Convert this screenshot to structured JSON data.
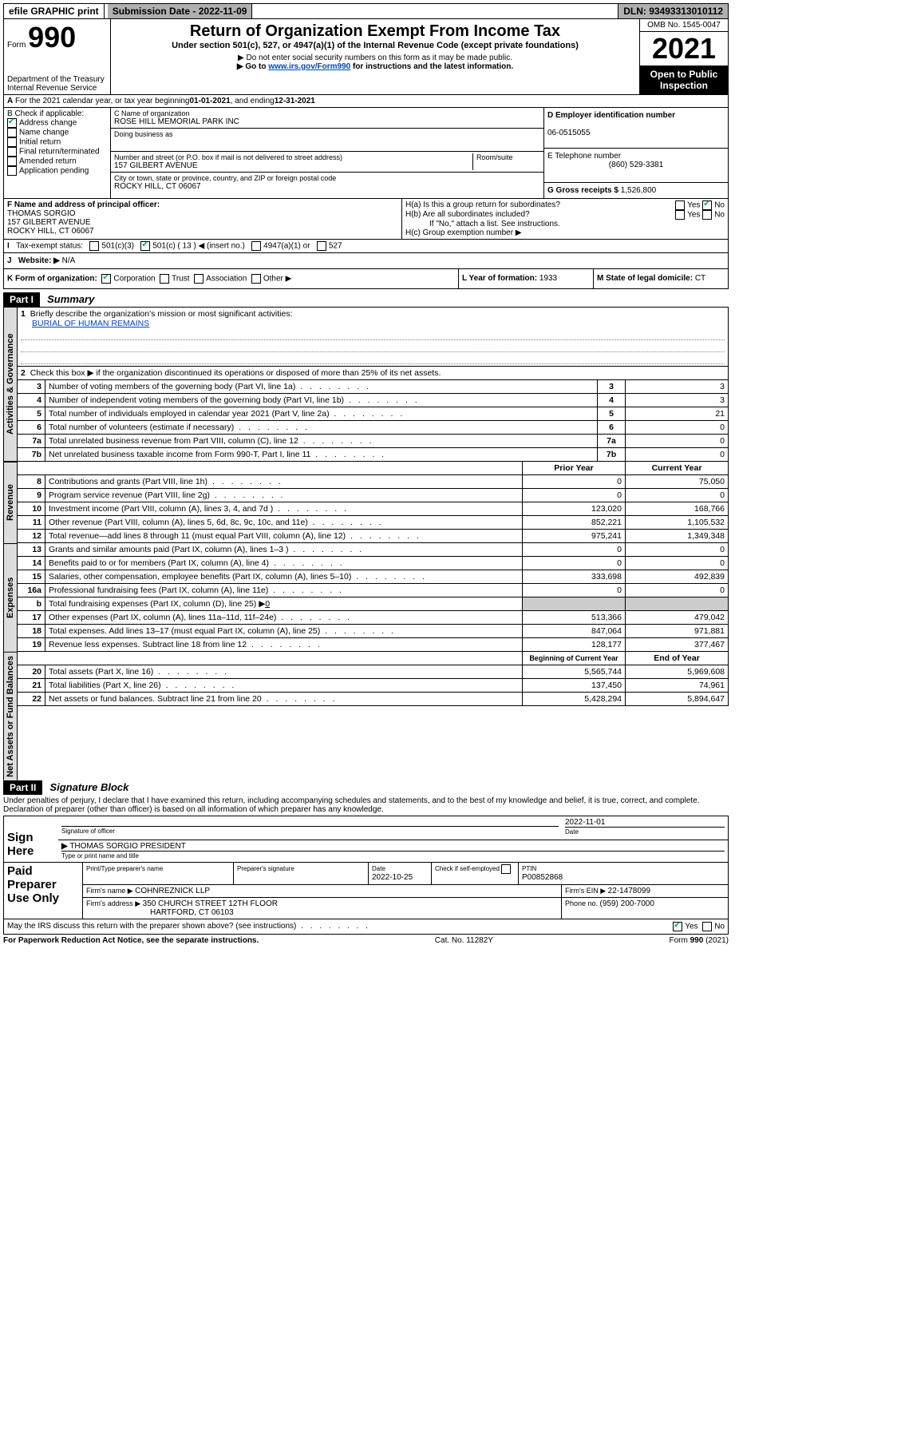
{
  "topbar": {
    "efile": "efile GRAPHIC print",
    "submission_label": "Submission Date - ",
    "submission_date": "2022-11-09",
    "dln_label": "DLN: ",
    "dln": "93493313010112"
  },
  "header": {
    "form_label": "Form",
    "form_num": "990",
    "dept": "Department of the Treasury",
    "irs": "Internal Revenue Service",
    "title": "Return of Organization Exempt From Income Tax",
    "subtitle": "Under section 501(c), 527, or 4947(a)(1) of the Internal Revenue Code (except private foundations)",
    "note1": "Do not enter social security numbers on this form as it may be made public.",
    "note2_pre": "Go to ",
    "note2_link": "www.irs.gov/Form990",
    "note2_post": " for instructions and the latest information.",
    "omb": "OMB No. 1545-0047",
    "year": "2021",
    "open": "Open to Public Inspection"
  },
  "lineA": {
    "pre": "For the 2021 calendar year, or tax year beginning ",
    "begin": "01-01-2021",
    "mid": " , and ending ",
    "end": "12-31-2021"
  },
  "boxB": {
    "title": "B Check if applicable:",
    "items": [
      {
        "label": "Address change",
        "checked": true
      },
      {
        "label": "Name change",
        "checked": false
      },
      {
        "label": "Initial return",
        "checked": false
      },
      {
        "label": "Final return/terminated",
        "checked": false
      },
      {
        "label": "Amended return",
        "checked": false
      },
      {
        "label": "Application pending",
        "checked": false
      }
    ]
  },
  "boxC": {
    "name_label": "C Name of organization",
    "name": "ROSE HILL MEMORIAL PARK INC",
    "dba_label": "Doing business as",
    "addr_label": "Number and street (or P.O. box if mail is not delivered to street address)",
    "room_label": "Room/suite",
    "addr": "157 GILBERT AVENUE",
    "city_label": "City or town, state or province, country, and ZIP or foreign postal code",
    "city": "ROCKY HILL, CT  06067"
  },
  "boxD": {
    "label": "D Employer identification number",
    "ein": "06-0515055"
  },
  "boxE": {
    "label": "E Telephone number",
    "phone": "(860) 529-3381"
  },
  "boxG": {
    "label": "G Gross receipts $ ",
    "amount": "1,526,800"
  },
  "boxF": {
    "label": "F Name and address of principal officer:",
    "name": "THOMAS SORGIO",
    "addr1": "157 GILBERT AVENUE",
    "addr2": "ROCKY HILL, CT  06067"
  },
  "boxH": {
    "a": "H(a)  Is this a group return for subordinates?",
    "b": "H(b)  Are all subordinates included?",
    "note": "If \"No,\" attach a list. See instructions.",
    "c": "H(c)  Group exemption number ▶",
    "yes": "Yes",
    "no": "No"
  },
  "lineI": {
    "label": "Tax-exempt status:",
    "c3": "501(c)(3)",
    "c_pre": "501(c) ( ",
    "c_num": "13",
    "c_post": " ) ◀ (insert no.)",
    "a4947": "4947(a)(1) or",
    "s527": "527"
  },
  "lineJ": {
    "label": "Website: ▶",
    "val": "N/A"
  },
  "lineK": {
    "label": "K Form of organization:",
    "corp": "Corporation",
    "trust": "Trust",
    "assoc": "Association",
    "other": "Other ▶"
  },
  "lineL": {
    "label": "L Year of formation: ",
    "val": "1933"
  },
  "lineM": {
    "label": "M State of legal domicile: ",
    "val": "CT"
  },
  "part1": {
    "tag": "Part I",
    "title": "Summary",
    "vtabs": {
      "gov": "Activities & Governance",
      "rev": "Revenue",
      "exp": "Expenses",
      "net": "Net Assets or Fund Balances"
    },
    "q1": "Briefly describe the organization's mission or most significant activities:",
    "mission": "BURIAL OF HUMAN REMAINS",
    "q2": "Check this box ▶          if the organization discontinued its operations or disposed of more than 25% of its net assets.",
    "gov_rows": [
      {
        "n": "3",
        "t": "Number of voting members of the governing body (Part VI, line 1a)",
        "v": "3"
      },
      {
        "n": "4",
        "t": "Number of independent voting members of the governing body (Part VI, line 1b)",
        "v": "3"
      },
      {
        "n": "5",
        "t": "Total number of individuals employed in calendar year 2021 (Part V, line 2a)",
        "v": "21"
      },
      {
        "n": "6",
        "t": "Total number of volunteers (estimate if necessary)",
        "v": "0"
      },
      {
        "n": "7a",
        "t": "Total unrelated business revenue from Part VIII, column (C), line 12",
        "v": "0"
      },
      {
        "n": "7b",
        "t": "Net unrelated business taxable income from Form 990-T, Part I, line 11",
        "v": "0"
      }
    ],
    "col_prior": "Prior Year",
    "col_curr": "Current Year",
    "rev_rows": [
      {
        "n": "8",
        "t": "Contributions and grants (Part VIII, line 1h)",
        "p": "0",
        "c": "75,050"
      },
      {
        "n": "9",
        "t": "Program service revenue (Part VIII, line 2g)",
        "p": "0",
        "c": "0"
      },
      {
        "n": "10",
        "t": "Investment income (Part VIII, column (A), lines 3, 4, and 7d )",
        "p": "123,020",
        "c": "168,766"
      },
      {
        "n": "11",
        "t": "Other revenue (Part VIII, column (A), lines 5, 6d, 8c, 9c, 10c, and 11e)",
        "p": "852,221",
        "c": "1,105,532"
      },
      {
        "n": "12",
        "t": "Total revenue—add lines 8 through 11 (must equal Part VIII, column (A), line 12)",
        "p": "975,241",
        "c": "1,349,348"
      }
    ],
    "exp_rows": [
      {
        "n": "13",
        "t": "Grants and similar amounts paid (Part IX, column (A), lines 1–3 )",
        "p": "0",
        "c": "0"
      },
      {
        "n": "14",
        "t": "Benefits paid to or for members (Part IX, column (A), line 4)",
        "p": "0",
        "c": "0"
      },
      {
        "n": "15",
        "t": "Salaries, other compensation, employee benefits (Part IX, column (A), lines 5–10)",
        "p": "333,698",
        "c": "492,839"
      },
      {
        "n": "16a",
        "t": "Professional fundraising fees (Part IX, column (A), line 11e)",
        "p": "0",
        "c": "0"
      }
    ],
    "exp_b": {
      "n": "b",
      "t": "Total fundraising expenses (Part IX, column (D), line 25) ▶",
      "v": "0"
    },
    "exp_rows2": [
      {
        "n": "17",
        "t": "Other expenses (Part IX, column (A), lines 11a–11d, 11f–24e)",
        "p": "513,366",
        "c": "479,042"
      },
      {
        "n": "18",
        "t": "Total expenses. Add lines 13–17 (must equal Part IX, column (A), line 25)",
        "p": "847,064",
        "c": "971,881"
      },
      {
        "n": "19",
        "t": "Revenue less expenses. Subtract line 18 from line 12",
        "p": "128,177",
        "c": "377,467"
      }
    ],
    "col_begin": "Beginning of Current Year",
    "col_end": "End of Year",
    "net_rows": [
      {
        "n": "20",
        "t": "Total assets (Part X, line 16)",
        "p": "5,565,744",
        "c": "5,969,608"
      },
      {
        "n": "21",
        "t": "Total liabilities (Part X, line 26)",
        "p": "137,450",
        "c": "74,961"
      },
      {
        "n": "22",
        "t": "Net assets or fund balances. Subtract line 21 from line 20",
        "p": "5,428,294",
        "c": "5,894,647"
      }
    ]
  },
  "part2": {
    "tag": "Part II",
    "title": "Signature Block",
    "decl": "Under penalties of perjury, I declare that I have examined this return, including accompanying schedules and statements, and to the best of my knowledge and belief, it is true, correct, and complete. Declaration of preparer (other than officer) is based on all information of which preparer has any knowledge.",
    "sign_here": "Sign Here",
    "sig_officer": "Signature of officer",
    "sig_date_lbl": "Date",
    "sig_date": "2022-11-01",
    "officer_name": "THOMAS SORGIO  PRESIDENT",
    "type_name": "Type or print name and title",
    "paid": "Paid Preparer Use Only",
    "prep_name_lbl": "Print/Type preparer's name",
    "prep_sig_lbl": "Preparer's signature",
    "prep_date_lbl": "Date",
    "prep_date": "2022-10-25",
    "self_emp": "Check          if self-employed",
    "ptin_lbl": "PTIN",
    "ptin": "P00852868",
    "firm_name_lbl": "Firm's name    ▶ ",
    "firm_name": "COHNREZNICK LLP",
    "firm_ein_lbl": "Firm's EIN ▶ ",
    "firm_ein": "22-1478099",
    "firm_addr_lbl": "Firm's address ▶ ",
    "firm_addr1": "350 CHURCH STREET 12TH FLOOR",
    "firm_addr2": "HARTFORD, CT  06103",
    "firm_phone_lbl": "Phone no. ",
    "firm_phone": "(959) 200-7000",
    "discuss": "May the IRS discuss this return with the preparer shown above? (see instructions)"
  },
  "footer": {
    "left": "For Paperwork Reduction Act Notice, see the separate instructions.",
    "mid": "Cat. No. 11282Y",
    "right": "Form 990 (2021)"
  }
}
